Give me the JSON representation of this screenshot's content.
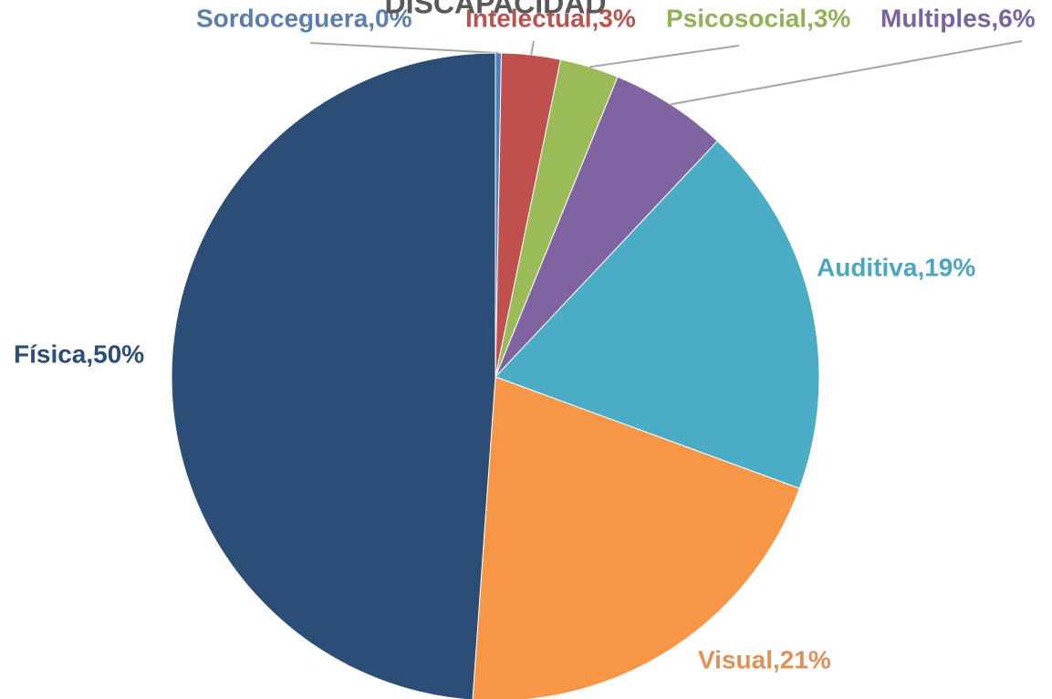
{
  "chart_data": {
    "type": "pie",
    "title": "DISCAPACIDAD",
    "labels": [
      "Sordoceguera,0%",
      "Intelectual,3%",
      "Psicosocial,3%",
      "Multiples,6%",
      "Auditiva,19%",
      "Visual,21%",
      "Física,50%"
    ],
    "values": [
      0.3,
      3,
      3,
      6,
      19,
      21,
      50
    ],
    "colors": [
      "#4f81bd",
      "#c0504d",
      "#9bbb59",
      "#8064a2",
      "#4bacc6",
      "#f79646",
      "#2c4d75"
    ],
    "label_colors": [
      "#5a7fae",
      "#b85450",
      "#92b25a",
      "#7a62a0",
      "#4ba6c0",
      "#e0915a",
      "#2c4d75"
    ]
  }
}
